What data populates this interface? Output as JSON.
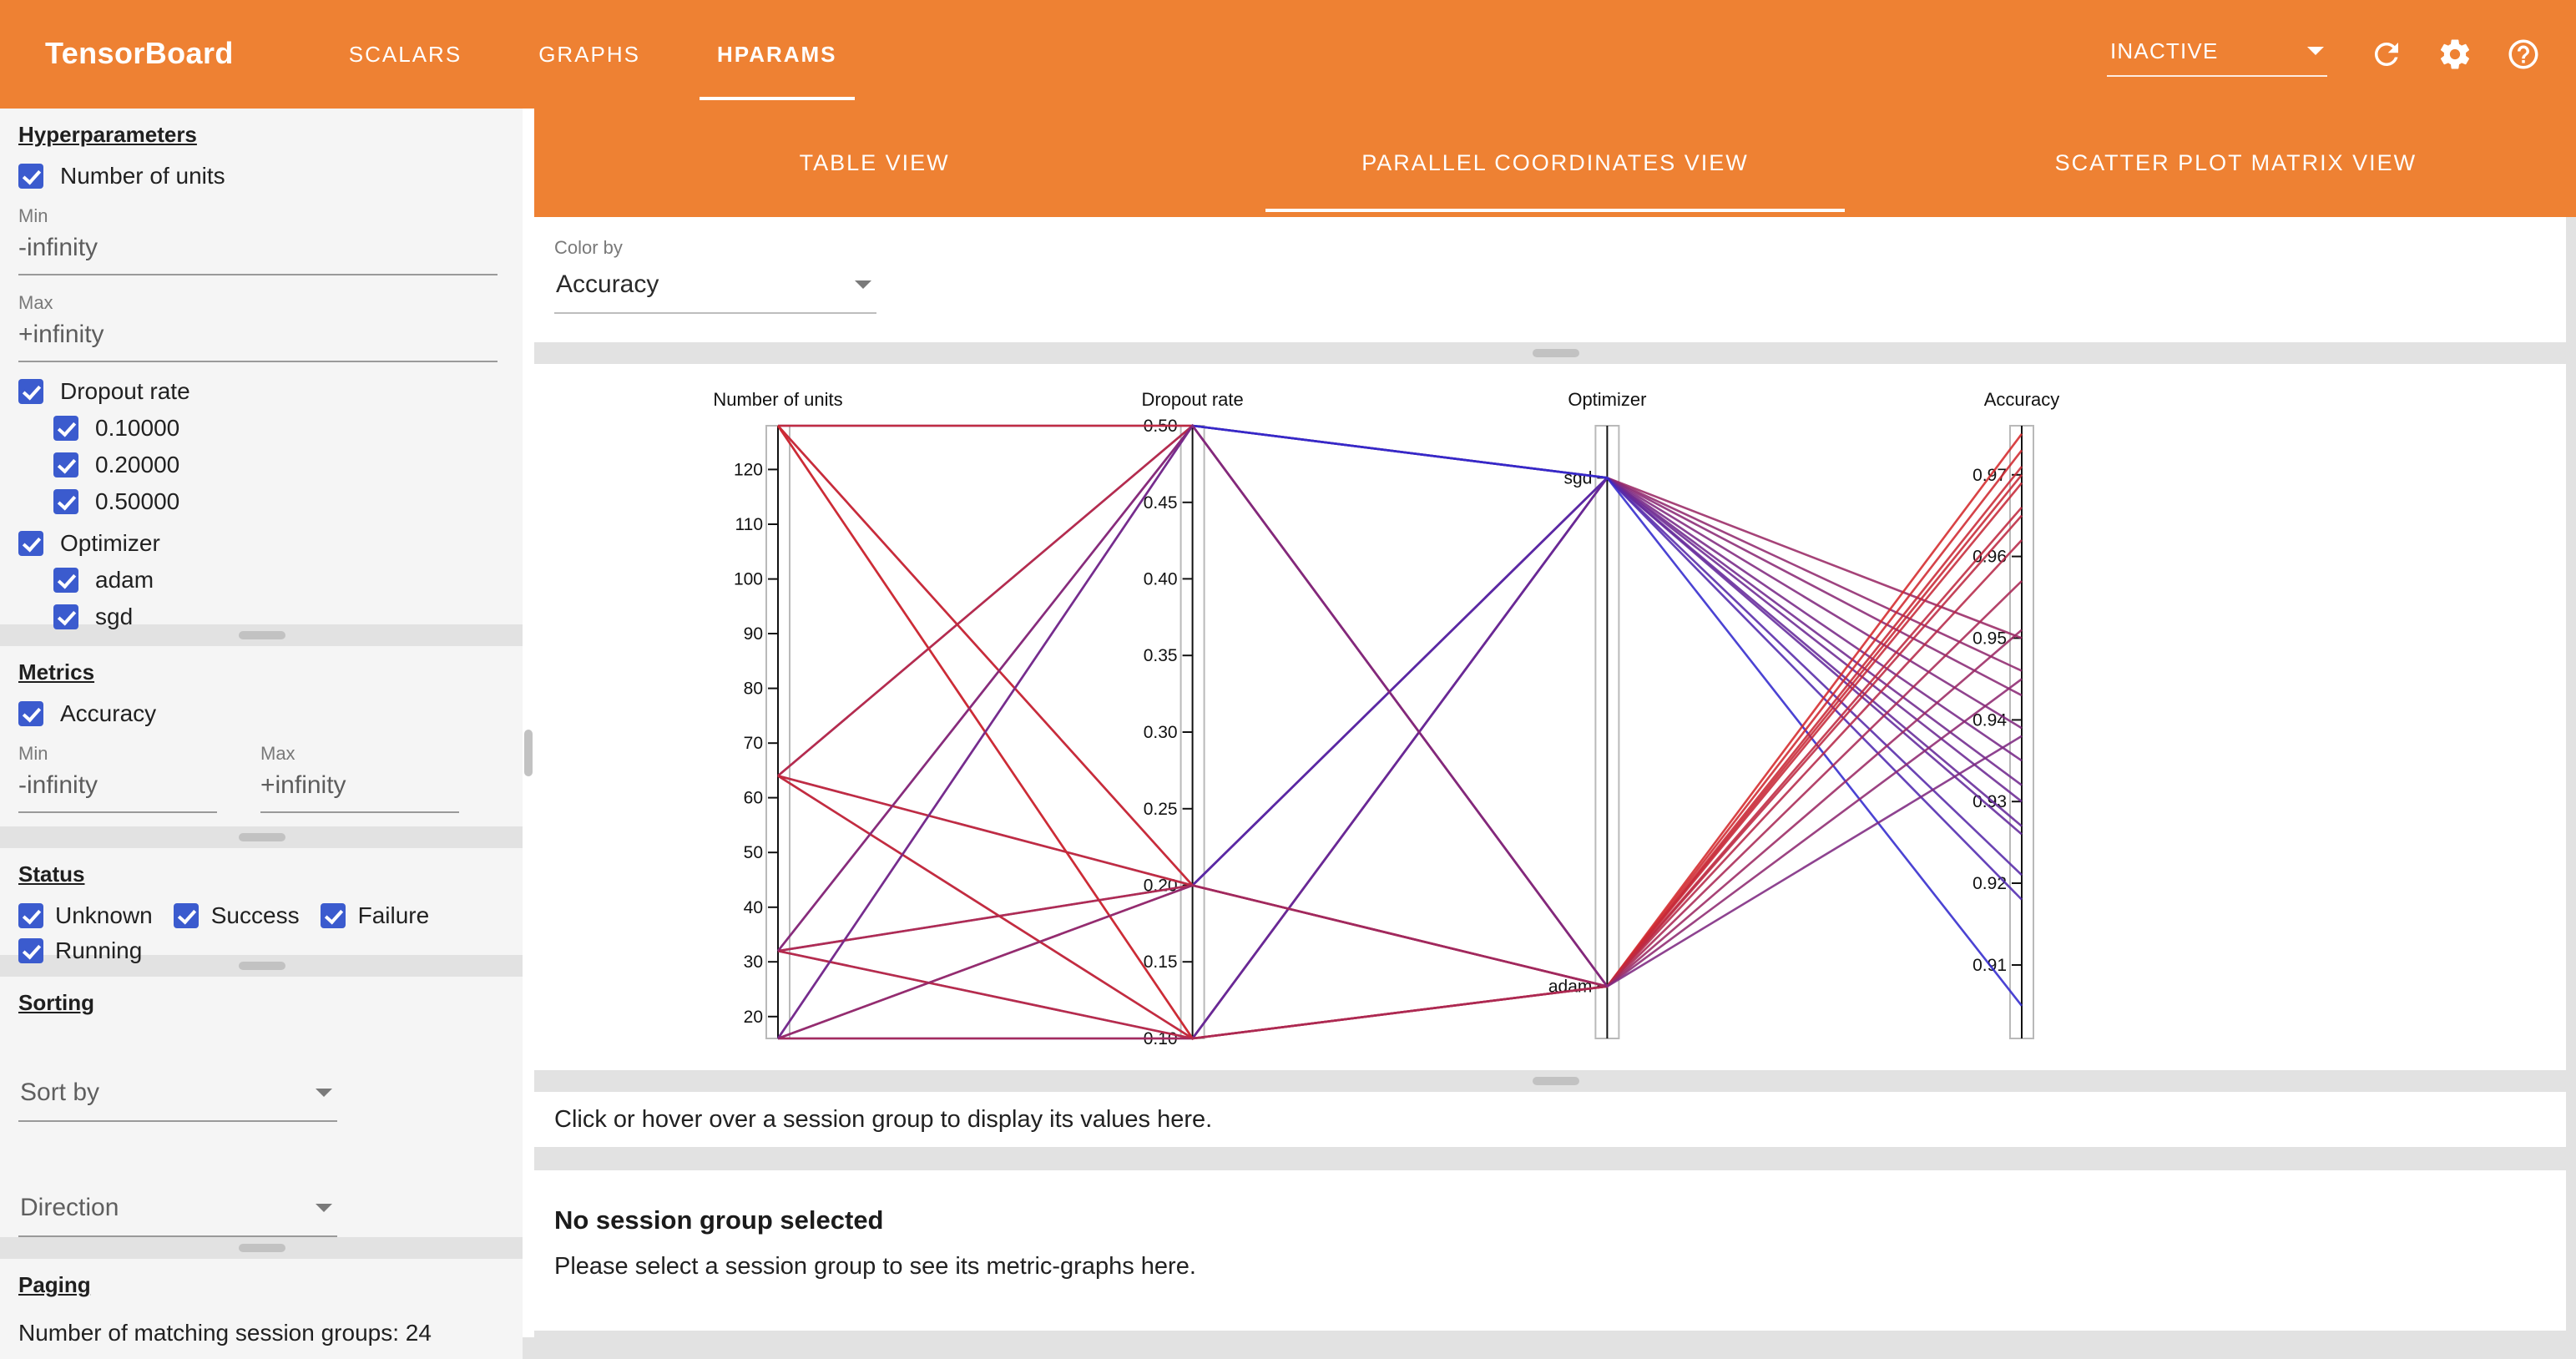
{
  "colors": {
    "toolbar_orange": "#ee8133",
    "checkbox_blue": "#3b5bce"
  },
  "app": {
    "title": "TensorBoard"
  },
  "topbar": {
    "tabs": [
      {
        "label": "SCALARS",
        "active": false
      },
      {
        "label": "GRAPHS",
        "active": false
      },
      {
        "label": "HPARAMS",
        "active": true
      }
    ],
    "status_select": {
      "value": "INACTIVE"
    },
    "icons": [
      "refresh-icon",
      "settings-icon",
      "help-icon"
    ]
  },
  "sidebar": {
    "hyperparameters": {
      "heading": "Hyperparameters",
      "number_of_units": {
        "label": "Number of units",
        "checked": true
      },
      "min_label": "Min",
      "min_value": "-infinity",
      "max_label": "Max",
      "max_value": "+infinity",
      "dropout": {
        "label": "Dropout rate",
        "checked": true,
        "options": [
          "0.10000",
          "0.20000",
          "0.50000"
        ]
      },
      "optimizer": {
        "label": "Optimizer",
        "checked": true,
        "options": [
          "adam",
          "sgd"
        ]
      }
    },
    "metrics": {
      "heading": "Metrics",
      "accuracy": {
        "label": "Accuracy",
        "checked": true
      },
      "min_label": "Min",
      "min_value": "-infinity",
      "max_label": "Max",
      "max_value": "+infinity"
    },
    "status": {
      "heading": "Status",
      "options": [
        "Unknown",
        "Success",
        "Failure",
        "Running"
      ]
    },
    "sorting": {
      "heading": "Sorting",
      "sort_by_label": "Sort by",
      "direction_label": "Direction"
    },
    "paging": {
      "heading": "Paging",
      "count_text": "Number of matching session groups: 24"
    }
  },
  "main": {
    "view_tabs": [
      {
        "label": "TABLE VIEW",
        "active": false
      },
      {
        "label": "PARALLEL COORDINATES VIEW",
        "active": true
      },
      {
        "label": "SCATTER PLOT MATRIX VIEW",
        "active": false
      }
    ],
    "color_by": {
      "label": "Color by",
      "value": "Accuracy"
    },
    "hint": "Click or hover over a session group to display its values here.",
    "empty_state": {
      "title": "No session group selected",
      "subtitle": "Please select a session group to see its metric-graphs here."
    }
  },
  "chart_data": {
    "type": "parallel_coordinates",
    "title": "",
    "color_by": "Accuracy",
    "color_scale": {
      "low": "#2929d6",
      "high": "#d62929",
      "min": 0.901,
      "max": 0.976
    },
    "axes": [
      {
        "key": "units",
        "name": "Number of units",
        "type": "numeric",
        "domain": [
          16,
          128
        ],
        "tick_values": [
          20,
          30,
          40,
          50,
          60,
          70,
          80,
          90,
          100,
          110,
          120
        ],
        "tick_labels": [
          "20",
          "30",
          "40",
          "50",
          "60",
          "70",
          "80",
          "90",
          "100",
          "110",
          "120"
        ]
      },
      {
        "key": "dropout",
        "name": "Dropout rate",
        "type": "numeric",
        "domain": [
          0.1,
          0.5
        ],
        "tick_values": [
          0.1,
          0.15,
          0.2,
          0.25,
          0.3,
          0.35,
          0.4,
          0.45,
          0.5
        ],
        "tick_labels": [
          "0.10",
          "0.15",
          "0.20",
          "0.25",
          "0.30",
          "0.35",
          "0.40",
          "0.45",
          "0.50"
        ]
      },
      {
        "key": "optimizer",
        "name": "Optimizer",
        "type": "categorical",
        "categories": [
          {
            "label": "adam",
            "pos": 0.085
          },
          {
            "label": "sgd",
            "pos": 0.915
          }
        ]
      },
      {
        "key": "accuracy",
        "name": "Accuracy",
        "type": "numeric",
        "domain": [
          0.901,
          0.976
        ],
        "tick_values": [
          0.91,
          0.92,
          0.93,
          0.94,
          0.95,
          0.96,
          0.97
        ],
        "tick_labels": [
          "0.91",
          "0.92",
          "0.93",
          "0.94",
          "0.95",
          "0.96",
          "0.97"
        ]
      }
    ],
    "sessions": [
      {
        "units": 128,
        "dropout": 0.1,
        "optimizer": "sgd",
        "accuracy": 0.95
      },
      {
        "units": 128,
        "dropout": 0.2,
        "optimizer": "sgd",
        "accuracy": 0.946
      },
      {
        "units": 128,
        "dropout": 0.5,
        "optimizer": "sgd",
        "accuracy": 0.932
      },
      {
        "units": 64,
        "dropout": 0.1,
        "optimizer": "sgd",
        "accuracy": 0.943
      },
      {
        "units": 64,
        "dropout": 0.2,
        "optimizer": "sgd",
        "accuracy": 0.939
      },
      {
        "units": 64,
        "dropout": 0.5,
        "optimizer": "sgd",
        "accuracy": 0.926
      },
      {
        "units": 32,
        "dropout": 0.1,
        "optimizer": "sgd",
        "accuracy": 0.935
      },
      {
        "units": 32,
        "dropout": 0.2,
        "optimizer": "sgd",
        "accuracy": 0.93
      },
      {
        "units": 32,
        "dropout": 0.5,
        "optimizer": "sgd",
        "accuracy": 0.918
      },
      {
        "units": 16,
        "dropout": 0.1,
        "optimizer": "sgd",
        "accuracy": 0.927
      },
      {
        "units": 16,
        "dropout": 0.2,
        "optimizer": "sgd",
        "accuracy": 0.921
      },
      {
        "units": 16,
        "dropout": 0.5,
        "optimizer": "sgd",
        "accuracy": 0.905
      },
      {
        "units": 128,
        "dropout": 0.1,
        "optimizer": "adam",
        "accuracy": 0.975
      },
      {
        "units": 128,
        "dropout": 0.2,
        "optimizer": "adam",
        "accuracy": 0.973
      },
      {
        "units": 128,
        "dropout": 0.5,
        "optimizer": "adam",
        "accuracy": 0.97
      },
      {
        "units": 64,
        "dropout": 0.1,
        "optimizer": "adam",
        "accuracy": 0.971
      },
      {
        "units": 64,
        "dropout": 0.2,
        "optimizer": "adam",
        "accuracy": 0.969
      },
      {
        "units": 64,
        "dropout": 0.5,
        "optimizer": "adam",
        "accuracy": 0.966
      },
      {
        "units": 32,
        "dropout": 0.1,
        "optimizer": "adam",
        "accuracy": 0.965
      },
      {
        "units": 32,
        "dropout": 0.2,
        "optimizer": "adam",
        "accuracy": 0.962
      },
      {
        "units": 32,
        "dropout": 0.5,
        "optimizer": "adam",
        "accuracy": 0.945
      },
      {
        "units": 16,
        "dropout": 0.1,
        "optimizer": "adam",
        "accuracy": 0.957
      },
      {
        "units": 16,
        "dropout": 0.2,
        "optimizer": "adam",
        "accuracy": 0.951
      },
      {
        "units": 16,
        "dropout": 0.5,
        "optimizer": "adam",
        "accuracy": 0.938
      }
    ]
  }
}
